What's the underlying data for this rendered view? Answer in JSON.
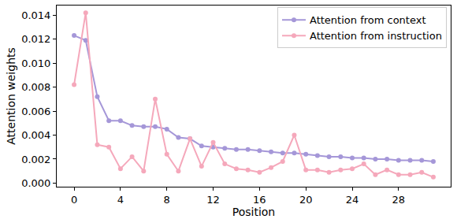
{
  "chart_data": {
    "type": "line",
    "x_label": "Position",
    "y_label": "Attention weights",
    "x": [
      0,
      1,
      2,
      3,
      4,
      5,
      6,
      7,
      8,
      9,
      10,
      11,
      12,
      13,
      14,
      15,
      16,
      17,
      18,
      19,
      20,
      21,
      22,
      23,
      24,
      25,
      26,
      27,
      28,
      29,
      30,
      31
    ],
    "series": [
      {
        "name": "Attention from context",
        "color": "#a597d8",
        "marker": "circle",
        "line_style": "solid",
        "values": [
          0.0123,
          0.0119,
          0.0072,
          0.0052,
          0.0052,
          0.0048,
          0.0047,
          0.0047,
          0.0045,
          0.0038,
          0.0037,
          0.0031,
          0.003,
          0.0029,
          0.0028,
          0.0028,
          0.0027,
          0.0026,
          0.0025,
          0.0025,
          0.0024,
          0.0023,
          0.0022,
          0.0022,
          0.0021,
          0.0021,
          0.002,
          0.002,
          0.0019,
          0.0019,
          0.0019,
          0.0018
        ]
      },
      {
        "name": "Attention from instruction",
        "color": "#f5a8bb",
        "marker": "circle",
        "line_style": "solid",
        "values": [
          0.0082,
          0.0142,
          0.0032,
          0.003,
          0.0012,
          0.0022,
          0.001,
          0.007,
          0.0024,
          0.001,
          0.0037,
          0.0014,
          0.0034,
          0.0016,
          0.0012,
          0.0011,
          0.0009,
          0.0013,
          0.0018,
          0.004,
          0.0011,
          0.0011,
          0.0009,
          0.0011,
          0.0012,
          0.0016,
          0.0007,
          0.0011,
          0.0007,
          0.0007,
          0.0009,
          0.0005
        ]
      }
    ],
    "xlim": [
      -1.5,
      32.5
    ],
    "xticks": [
      0,
      4,
      8,
      12,
      16,
      20,
      24,
      28
    ],
    "ylim": [
      -0.0003,
      0.0148
    ],
    "yticks": [
      {
        "value": 0,
        "label": "0.000"
      },
      {
        "value": 0.002,
        "label": "0.002"
      },
      {
        "value": 0.004,
        "label": "0.004"
      },
      {
        "value": 0.006,
        "label": "0.006"
      },
      {
        "value": 0.008,
        "label": "0.008"
      },
      {
        "value": 0.01,
        "label": "0.010"
      },
      {
        "value": 0.012,
        "label": "0.012"
      },
      {
        "value": 0.014,
        "label": "0.014"
      }
    ],
    "grid": false,
    "legend": "upper right"
  }
}
